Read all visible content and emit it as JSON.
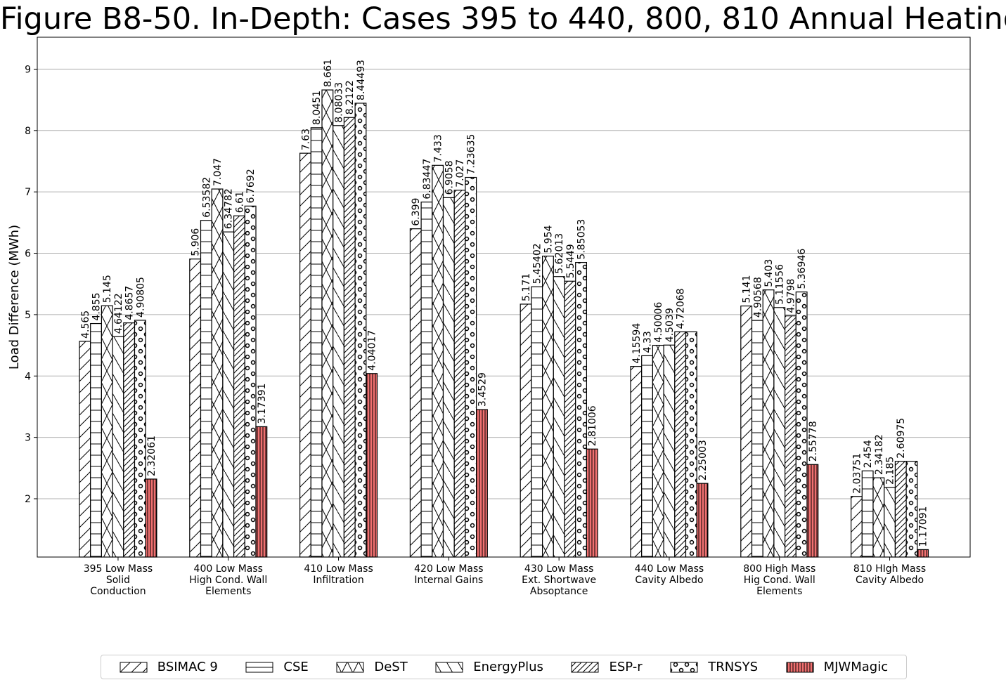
{
  "chart_data": {
    "type": "bar",
    "title": "Figure B8-50. In-Depth: Cases 395 to 440, 800, 810 Annual Heating",
    "xlabel": "",
    "ylabel": "Load Difference (MWh)",
    "ylim": [
      1.05,
      9.52
    ],
    "yticks": [
      2,
      3,
      4,
      5,
      6,
      7,
      8,
      9
    ],
    "grid": "horizontal",
    "legend_position": "bottom",
    "categories": [
      "395 Low Mass\nSolid\nConduction",
      "400 Low Mass\nHigh Cond. Wall\nElements",
      "410 Low Mass\nInfiltration",
      "420 Low Mass\nInternal Gains",
      "430 Low Mass\nExt. Shortwave\nAbsoptance",
      "440 Low Mass\nCavity Albedo",
      "800 High Mass\nHig Cond. Wall\nElements",
      "810 HIgh Mass\nCavity Albedo"
    ],
    "series": [
      {
        "name": "BSIMAC 9",
        "pattern": "diag-forward",
        "color": "#ffffff",
        "values": [
          4.565,
          5.906,
          7.63,
          6.399,
          5.171,
          4.15594,
          5.141,
          2.03751
        ],
        "labels": [
          "4.565",
          "5.906",
          "7.63",
          "6.399",
          "5.171",
          "4.15594",
          "5.141",
          "2.03751"
        ]
      },
      {
        "name": "CSE",
        "pattern": "horizontal",
        "color": "#ffffff",
        "values": [
          4.855,
          6.53582,
          8.0451,
          6.83447,
          5.45402,
          4.33,
          4.90568,
          2.454
        ],
        "labels": [
          "4.855",
          "6.53582",
          "8.0451",
          "6.83447",
          "5.45402",
          "4.33",
          "4.90568",
          "2.454"
        ]
      },
      {
        "name": "DeST",
        "pattern": "cross",
        "color": "#ffffff",
        "values": [
          5.145,
          7.047,
          8.661,
          7.433,
          5.954,
          4.50006,
          5.403,
          2.34182
        ],
        "labels": [
          "5.145",
          "7.047",
          "8.661",
          "7.433",
          "5.954",
          "4.50006",
          "5.403",
          "2.34182"
        ]
      },
      {
        "name": "EnergyPlus",
        "pattern": "diag-back",
        "color": "#ffffff",
        "values": [
          4.64122,
          6.34782,
          8.08033,
          6.9058,
          5.62013,
          4.5039,
          5.11556,
          2.185
        ],
        "labels": [
          "4.64122",
          "6.34782",
          "8.08033",
          "6.9058",
          "5.62013",
          "4.5039",
          "5.11556",
          "2.185"
        ]
      },
      {
        "name": "ESP-r",
        "pattern": "diag-forward-dense",
        "color": "#ffffff",
        "values": [
          4.8657,
          6.61,
          8.2122,
          7.027,
          5.5449,
          4.72068,
          4.9798,
          2.60975
        ],
        "labels": [
          "4.8657",
          "6.61",
          "8.2122",
          "7.027",
          "5.5449",
          "4.72068",
          "4.9798",
          "2.60975"
        ]
      },
      {
        "name": "TRNSYS",
        "pattern": "circles",
        "color": "#ffffff",
        "values": [
          4.90805,
          6.7692,
          8.44493,
          7.23635,
          5.85053,
          4.72068,
          5.36946,
          2.60975
        ],
        "labels": [
          "4.90805",
          "6.7692",
          "8.44493",
          "7.23635",
          "5.85053",
          "",
          "5.36946",
          ""
        ]
      },
      {
        "name": "MJWMagic",
        "pattern": "vertical",
        "color": "#f07070",
        "values": [
          2.32061,
          3.17391,
          4.04017,
          3.4529,
          2.81006,
          2.25003,
          2.55778,
          1.17091
        ],
        "labels": [
          "2.32061",
          "3.17391",
          "4.04017",
          "3.4529",
          "2.81006",
          "2.25003",
          "2.55778",
          "1.17091"
        ]
      }
    ]
  }
}
